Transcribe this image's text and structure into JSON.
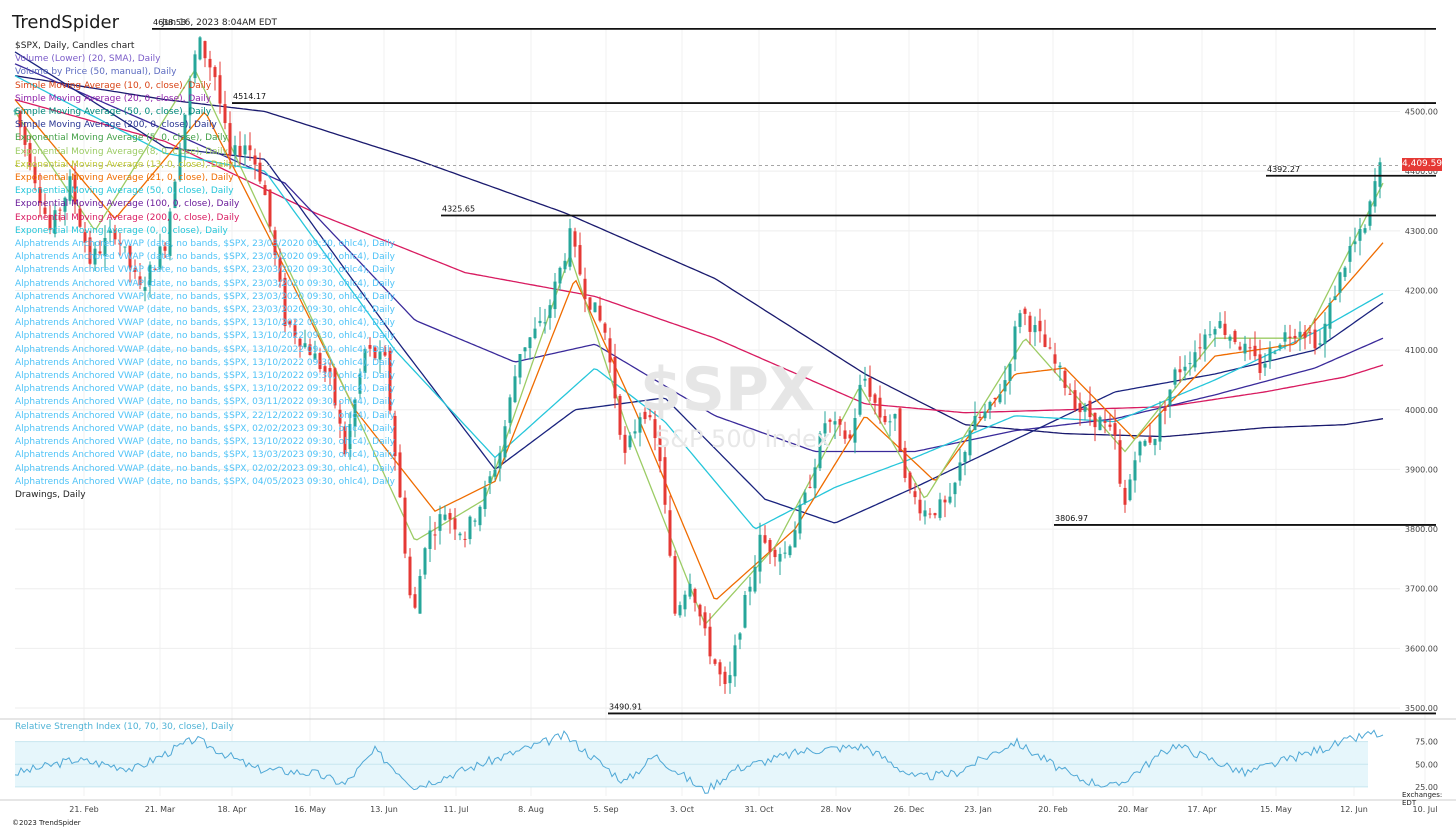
{
  "header": {
    "logo_text": "TrendSpider",
    "date_text": "Jun 16, 2023 8:04AM EDT"
  },
  "legend": [
    {
      "text": "$SPX, Daily, Candles chart",
      "color": "#222222"
    },
    {
      "text": "Volume (Lower) (20, SMA), Daily",
      "color": "#7b5cc9"
    },
    {
      "text": "Volume by Price (50, manual), Daily",
      "color": "#5c6bc0"
    },
    {
      "text": "Simple Moving Average (10, 0, close), Daily",
      "color": "#d84315"
    },
    {
      "text": "Simple Moving Average (20, 0, close), Daily",
      "color": "#8e24aa"
    },
    {
      "text": "Simple Moving Average (50, 0, close), Daily",
      "color": "#00897b"
    },
    {
      "text": "Simple Moving Average (200, 0, close), Daily",
      "color": "#283593"
    },
    {
      "text": "Exponential Moving Average (5, 0, close), Daily",
      "color": "#43a047"
    },
    {
      "text": "Exponential Moving Average (8, 0, close), Daily",
      "color": "#9ccc65"
    },
    {
      "text": "Exponential Moving Average (13, 0, close), Daily",
      "color": "#c0ca33"
    },
    {
      "text": "Exponential Moving Average (21, 0, close), Daily",
      "color": "#ef6c00"
    },
    {
      "text": "Exponential Moving Average (50, 0, close), Daily",
      "color": "#26c6da"
    },
    {
      "text": "Exponential Moving Average (100, 0, close), Daily",
      "color": "#6a1b9a"
    },
    {
      "text": "Exponential Moving Average (200, 0, close), Daily",
      "color": "#d81b60"
    },
    {
      "text": "Exponential Moving Average (0, 0, close), Daily",
      "color": "#26c6da"
    },
    {
      "text": "Alphatrends Anchored VWAP (date, no bands, $SPX, 23/03/2020 09:30, ohlc4), Daily",
      "color": "#4fc3f7"
    },
    {
      "text": "Alphatrends Anchored VWAP (date, no bands, $SPX, 23/03/2020 09:30, ohlc4), Daily",
      "color": "#4fc3f7"
    },
    {
      "text": "Alphatrends Anchored VWAP (date, no bands, $SPX, 23/03/2020 09:30, ohlc4), Daily",
      "color": "#4fc3f7"
    },
    {
      "text": "Alphatrends Anchored VWAP (date, no bands, $SPX, 23/03/2020 09:30, ohlc4), Daily",
      "color": "#4fc3f7"
    },
    {
      "text": "Alphatrends Anchored VWAP (date, no bands, $SPX, 23/03/2020 09:30, ohlc4), Daily",
      "color": "#4fc3f7"
    },
    {
      "text": "Alphatrends Anchored VWAP (date, no bands, $SPX, 23/03/2020 09:30, ohlc4), Daily",
      "color": "#4fc3f7"
    },
    {
      "text": "Alphatrends Anchored VWAP (date, no bands, $SPX, 13/10/2022 09:30, ohlc4), Daily",
      "color": "#4fc3f7"
    },
    {
      "text": "Alphatrends Anchored VWAP (date, no bands, $SPX, 13/10/2022 09:30, ohlc4), Daily",
      "color": "#4fc3f7"
    },
    {
      "text": "Alphatrends Anchored VWAP (date, no bands, $SPX, 13/10/2022 09:30, ohlc4), Daily",
      "color": "#4fc3f7"
    },
    {
      "text": "Alphatrends Anchored VWAP (date, no bands, $SPX, 13/10/2022 09:30, ohlc4), Daily",
      "color": "#4fc3f7"
    },
    {
      "text": "Alphatrends Anchored VWAP (date, no bands, $SPX, 13/10/2022 09:30, ohlc4), Daily",
      "color": "#4fc3f7"
    },
    {
      "text": "Alphatrends Anchored VWAP (date, no bands, $SPX, 13/10/2022 09:30, ohlc4), Daily",
      "color": "#4fc3f7"
    },
    {
      "text": "Alphatrends Anchored VWAP (date, no bands, $SPX, 03/11/2022 09:30, ohlc4), Daily",
      "color": "#4fc3f7"
    },
    {
      "text": "Alphatrends Anchored VWAP (date, no bands, $SPX, 22/12/2022 09:30, ohlc4), Daily",
      "color": "#4fc3f7"
    },
    {
      "text": "Alphatrends Anchored VWAP (date, no bands, $SPX, 02/02/2023 09:30, ohlc4), Daily",
      "color": "#4fc3f7"
    },
    {
      "text": "Alphatrends Anchored VWAP (date, no bands, $SPX, 13/10/2022 09:30, ohlc4), Daily",
      "color": "#4fc3f7"
    },
    {
      "text": "Alphatrends Anchored VWAP (date, no bands, $SPX, 13/03/2023 09:30, ohlc4), Daily",
      "color": "#4fc3f7"
    },
    {
      "text": "Alphatrends Anchored VWAP (date, no bands, $SPX, 02/02/2023 09:30, ohlc4), Daily",
      "color": "#4fc3f7"
    },
    {
      "text": "Alphatrends Anchored VWAP (date, no bands, $SPX, 04/05/2023 09:30, ohlc4), Daily",
      "color": "#4fc3f7"
    },
    {
      "text": "Drawings, Daily",
      "color": "#222222"
    }
  ],
  "watermark": {
    "symbol": "$SPX",
    "name": "S&P 500 Index"
  },
  "current_price": {
    "label": "4,409.59",
    "value": 4409.59,
    "color": "#e53935"
  },
  "rsi_title": "Relative Strength Index (10, 70, 30, close), Daily",
  "footer": {
    "copyright": "©2023 TrendSpider",
    "exchanges": "Exchanges: EDT"
  },
  "chart_data": {
    "type": "line",
    "title": "$SPX, Daily, Candles chart",
    "y_ticks": [
      "4500.00",
      "4400.00",
      "4300.00",
      "4200.00",
      "4100.00",
      "4000.00",
      "3900.00",
      "3800.00",
      "3700.00",
      "3600.00",
      "3500.00"
    ],
    "ylim": [
      3490,
      4640
    ],
    "x_ticks": [
      "21. Feb",
      "21. Mar",
      "18. Apr",
      "16. May",
      "13. Jun",
      "11. Jul",
      "8. Aug",
      "5. Sep",
      "3. Oct",
      "31. Oct",
      "28. Nov",
      "26. Dec",
      "23. Jan",
      "20. Feb",
      "20. Mar",
      "17. Apr",
      "15. May",
      "12. Jun",
      "10. Jul"
    ],
    "horizontal_levels": [
      {
        "value": 4638.53,
        "label": "4638.53"
      },
      {
        "value": 4514.17,
        "label": "4514.17"
      },
      {
        "value": 4392.27,
        "label": "4392.27"
      },
      {
        "value": 4325.65,
        "label": "4325.65"
      },
      {
        "value": 3806.97,
        "label": "3806.97"
      },
      {
        "value": 3490.91,
        "label": "3490.91"
      }
    ],
    "price_anchor_points": [
      {
        "x": 0,
        "y": 4500
      },
      {
        "x": 15,
        "y": 4420
      },
      {
        "x": 35,
        "y": 4300
      },
      {
        "x": 55,
        "y": 4380
      },
      {
        "x": 75,
        "y": 4250
      },
      {
        "x": 100,
        "y": 4300
      },
      {
        "x": 125,
        "y": 4200
      },
      {
        "x": 150,
        "y": 4280
      },
      {
        "x": 165,
        "y": 4450
      },
      {
        "x": 183,
        "y": 4620
      },
      {
        "x": 200,
        "y": 4560
      },
      {
        "x": 215,
        "y": 4420
      },
      {
        "x": 232,
        "y": 4450
      },
      {
        "x": 248,
        "y": 4380
      },
      {
        "x": 270,
        "y": 4150
      },
      {
        "x": 295,
        "y": 4100
      },
      {
        "x": 315,
        "y": 4050
      },
      {
        "x": 330,
        "y": 3930
      },
      {
        "x": 350,
        "y": 4100
      },
      {
        "x": 370,
        "y": 4080
      },
      {
        "x": 385,
        "y": 3850
      },
      {
        "x": 398,
        "y": 3640
      },
      {
        "x": 410,
        "y": 3780
      },
      {
        "x": 430,
        "y": 3830
      },
      {
        "x": 450,
        "y": 3790
      },
      {
        "x": 470,
        "y": 3860
      },
      {
        "x": 485,
        "y": 3930
      },
      {
        "x": 505,
        "y": 4100
      },
      {
        "x": 530,
        "y": 4150
      },
      {
        "x": 555,
        "y": 4290
      },
      {
        "x": 570,
        "y": 4200
      },
      {
        "x": 590,
        "y": 4130
      },
      {
        "x": 610,
        "y": 3920
      },
      {
        "x": 628,
        "y": 4010
      },
      {
        "x": 645,
        "y": 3920
      },
      {
        "x": 660,
        "y": 3660
      },
      {
        "x": 675,
        "y": 3720
      },
      {
        "x": 690,
        "y": 3620
      },
      {
        "x": 712,
        "y": 3520
      },
      {
        "x": 725,
        "y": 3640
      },
      {
        "x": 745,
        "y": 3780
      },
      {
        "x": 770,
        "y": 3760
      },
      {
        "x": 790,
        "y": 3850
      },
      {
        "x": 810,
        "y": 3980
      },
      {
        "x": 835,
        "y": 3950
      },
      {
        "x": 848,
        "y": 4060
      },
      {
        "x": 865,
        "y": 3990
      },
      {
        "x": 880,
        "y": 3980
      },
      {
        "x": 895,
        "y": 3860
      },
      {
        "x": 910,
        "y": 3830
      },
      {
        "x": 935,
        "y": 3840
      },
      {
        "x": 955,
        "y": 3970
      },
      {
        "x": 975,
        "y": 4000
      },
      {
        "x": 990,
        "y": 4050
      },
      {
        "x": 1005,
        "y": 4170
      },
      {
        "x": 1025,
        "y": 4120
      },
      {
        "x": 1045,
        "y": 4060
      },
      {
        "x": 1065,
        "y": 4000
      },
      {
        "x": 1085,
        "y": 3980
      },
      {
        "x": 1100,
        "y": 3950
      },
      {
        "x": 1108,
        "y": 3820
      },
      {
        "x": 1120,
        "y": 3930
      },
      {
        "x": 1140,
        "y": 3960
      },
      {
        "x": 1160,
        "y": 4060
      },
      {
        "x": 1180,
        "y": 4100
      },
      {
        "x": 1200,
        "y": 4150
      },
      {
        "x": 1220,
        "y": 4120
      },
      {
        "x": 1245,
        "y": 4070
      },
      {
        "x": 1265,
        "y": 4120
      },
      {
        "x": 1285,
        "y": 4140
      },
      {
        "x": 1305,
        "y": 4110
      },
      {
        "x": 1320,
        "y": 4200
      },
      {
        "x": 1335,
        "y": 4270
      },
      {
        "x": 1350,
        "y": 4300
      },
      {
        "x": 1360,
        "y": 4380
      },
      {
        "x": 1368,
        "y": 4420
      }
    ],
    "moving_averages": [
      {
        "name": "SMA 200",
        "color": "#1a1a6e",
        "points": [
          {
            "x": 0,
            "y": 4560
          },
          {
            "x": 150,
            "y": 4520
          },
          {
            "x": 250,
            "y": 4500
          },
          {
            "x": 400,
            "y": 4420
          },
          {
            "x": 550,
            "y": 4330
          },
          {
            "x": 700,
            "y": 4220
          },
          {
            "x": 850,
            "y": 4060
          },
          {
            "x": 950,
            "y": 3975
          },
          {
            "x": 1050,
            "y": 3960
          },
          {
            "x": 1150,
            "y": 3955
          },
          {
            "x": 1250,
            "y": 3970
          },
          {
            "x": 1330,
            "y": 3975
          },
          {
            "x": 1368,
            "y": 3985
          }
        ]
      },
      {
        "name": "EMA 200",
        "color": "#d81b60",
        "points": [
          {
            "x": 0,
            "y": 4520
          },
          {
            "x": 150,
            "y": 4450
          },
          {
            "x": 300,
            "y": 4330
          },
          {
            "x": 450,
            "y": 4230
          },
          {
            "x": 580,
            "y": 4190
          },
          {
            "x": 700,
            "y": 4120
          },
          {
            "x": 850,
            "y": 4010
          },
          {
            "x": 950,
            "y": 3995
          },
          {
            "x": 1050,
            "y": 4000
          },
          {
            "x": 1150,
            "y": 4005
          },
          {
            "x": 1250,
            "y": 4030
          },
          {
            "x": 1330,
            "y": 4055
          },
          {
            "x": 1368,
            "y": 4075
          }
        ]
      },
      {
        "name": "EMA 100",
        "color": "#3a2a9a",
        "points": [
          {
            "x": 0,
            "y": 4580
          },
          {
            "x": 150,
            "y": 4470
          },
          {
            "x": 270,
            "y": 4380
          },
          {
            "x": 400,
            "y": 4150
          },
          {
            "x": 500,
            "y": 4080
          },
          {
            "x": 580,
            "y": 4110
          },
          {
            "x": 700,
            "y": 3990
          },
          {
            "x": 800,
            "y": 3930
          },
          {
            "x": 900,
            "y": 3930
          },
          {
            "x": 1000,
            "y": 3965
          },
          {
            "x": 1100,
            "y": 3985
          },
          {
            "x": 1200,
            "y": 4025
          },
          {
            "x": 1300,
            "y": 4070
          },
          {
            "x": 1368,
            "y": 4120
          }
        ]
      },
      {
        "name": "SMA 50",
        "color": "#1a237e",
        "points": [
          {
            "x": 0,
            "y": 4600
          },
          {
            "x": 150,
            "y": 4440
          },
          {
            "x": 250,
            "y": 4420
          },
          {
            "x": 380,
            "y": 4120
          },
          {
            "x": 480,
            "y": 3900
          },
          {
            "x": 560,
            "y": 4000
          },
          {
            "x": 650,
            "y": 4020
          },
          {
            "x": 750,
            "y": 3850
          },
          {
            "x": 820,
            "y": 3810
          },
          {
            "x": 900,
            "y": 3870
          },
          {
            "x": 1000,
            "y": 3950
          },
          {
            "x": 1100,
            "y": 4030
          },
          {
            "x": 1200,
            "y": 4060
          },
          {
            "x": 1300,
            "y": 4100
          },
          {
            "x": 1368,
            "y": 4180
          }
        ]
      },
      {
        "name": "EMA 50",
        "color": "#26c6da",
        "points": [
          {
            "x": 0,
            "y": 4560
          },
          {
            "x": 150,
            "y": 4430
          },
          {
            "x": 250,
            "y": 4400
          },
          {
            "x": 380,
            "y": 4100
          },
          {
            "x": 480,
            "y": 3920
          },
          {
            "x": 580,
            "y": 4070
          },
          {
            "x": 650,
            "y": 3980
          },
          {
            "x": 740,
            "y": 3800
          },
          {
            "x": 820,
            "y": 3870
          },
          {
            "x": 900,
            "y": 3920
          },
          {
            "x": 1000,
            "y": 3990
          },
          {
            "x": 1100,
            "y": 3980
          },
          {
            "x": 1200,
            "y": 4050
          },
          {
            "x": 1300,
            "y": 4130
          },
          {
            "x": 1368,
            "y": 4195
          }
        ]
      },
      {
        "name": "EMA 21",
        "color": "#ef6c00",
        "points": [
          {
            "x": 0,
            "y": 4520
          },
          {
            "x": 100,
            "y": 4320
          },
          {
            "x": 190,
            "y": 4500
          },
          {
            "x": 260,
            "y": 4270
          },
          {
            "x": 340,
            "y": 4000
          },
          {
            "x": 420,
            "y": 3830
          },
          {
            "x": 480,
            "y": 3880
          },
          {
            "x": 560,
            "y": 4220
          },
          {
            "x": 620,
            "y": 4000
          },
          {
            "x": 700,
            "y": 3680
          },
          {
            "x": 780,
            "y": 3800
          },
          {
            "x": 850,
            "y": 3990
          },
          {
            "x": 920,
            "y": 3880
          },
          {
            "x": 1000,
            "y": 4060
          },
          {
            "x": 1050,
            "y": 4070
          },
          {
            "x": 1120,
            "y": 3950
          },
          {
            "x": 1200,
            "y": 4090
          },
          {
            "x": 1280,
            "y": 4110
          },
          {
            "x": 1368,
            "y": 4280
          }
        ]
      },
      {
        "name": "EMA 8",
        "color": "#9ccc65",
        "points": [
          {
            "x": 0,
            "y": 4500
          },
          {
            "x": 80,
            "y": 4300
          },
          {
            "x": 180,
            "y": 4570
          },
          {
            "x": 250,
            "y": 4320
          },
          {
            "x": 320,
            "y": 4070
          },
          {
            "x": 400,
            "y": 3780
          },
          {
            "x": 470,
            "y": 3850
          },
          {
            "x": 555,
            "y": 4260
          },
          {
            "x": 610,
            "y": 3980
          },
          {
            "x": 690,
            "y": 3640
          },
          {
            "x": 760,
            "y": 3770
          },
          {
            "x": 845,
            "y": 4040
          },
          {
            "x": 910,
            "y": 3850
          },
          {
            "x": 1010,
            "y": 4120
          },
          {
            "x": 1110,
            "y": 3930
          },
          {
            "x": 1200,
            "y": 4120
          },
          {
            "x": 1290,
            "y": 4120
          },
          {
            "x": 1368,
            "y": 4380
          }
        ]
      }
    ],
    "rsi": {
      "levels": [
        75,
        50,
        25
      ],
      "level_labels": [
        "75.00",
        "50.00",
        "25.00"
      ],
      "ylim": [
        15,
        90
      ],
      "points": [
        {
          "x": 0,
          "y": 40
        },
        {
          "x": 60,
          "y": 55
        },
        {
          "x": 120,
          "y": 45
        },
        {
          "x": 180,
          "y": 78
        },
        {
          "x": 240,
          "y": 45
        },
        {
          "x": 300,
          "y": 40
        },
        {
          "x": 330,
          "y": 28
        },
        {
          "x": 360,
          "y": 65
        },
        {
          "x": 400,
          "y": 25
        },
        {
          "x": 460,
          "y": 48
        },
        {
          "x": 550,
          "y": 82
        },
        {
          "x": 610,
          "y": 30
        },
        {
          "x": 640,
          "y": 60
        },
        {
          "x": 690,
          "y": 20
        },
        {
          "x": 720,
          "y": 45
        },
        {
          "x": 790,
          "y": 65
        },
        {
          "x": 850,
          "y": 70
        },
        {
          "x": 900,
          "y": 35
        },
        {
          "x": 940,
          "y": 40
        },
        {
          "x": 1000,
          "y": 75
        },
        {
          "x": 1060,
          "y": 35
        },
        {
          "x": 1100,
          "y": 25
        },
        {
          "x": 1160,
          "y": 72
        },
        {
          "x": 1230,
          "y": 40
        },
        {
          "x": 1300,
          "y": 65
        },
        {
          "x": 1360,
          "y": 85
        },
        {
          "x": 1368,
          "y": 78
        }
      ]
    }
  }
}
